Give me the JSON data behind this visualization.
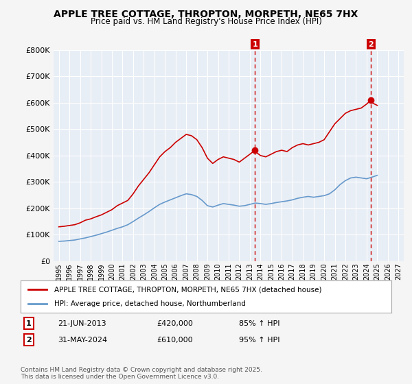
{
  "title": "APPLE TREE COTTAGE, THROPTON, MORPETH, NE65 7HX",
  "subtitle": "Price paid vs. HM Land Registry's House Price Index (HPI)",
  "ylim": [
    0,
    800000
  ],
  "yticks": [
    0,
    100000,
    200000,
    300000,
    400000,
    500000,
    600000,
    700000,
    800000
  ],
  "ytick_labels": [
    "£0",
    "£100K",
    "£200K",
    "£300K",
    "£400K",
    "£500K",
    "£600K",
    "£700K",
    "£800K"
  ],
  "xlim": [
    1994.5,
    2027.5
  ],
  "xticks": [
    1995,
    1996,
    1997,
    1998,
    1999,
    2000,
    2001,
    2002,
    2003,
    2004,
    2005,
    2006,
    2007,
    2008,
    2009,
    2010,
    2011,
    2012,
    2013,
    2014,
    2015,
    2016,
    2017,
    2018,
    2019,
    2020,
    2021,
    2022,
    2023,
    2024,
    2025,
    2026,
    2027
  ],
  "red_line_color": "#cc0000",
  "blue_line_color": "#6699cc",
  "vline_color": "#cc0000",
  "plot_bg_color": "#e8eef5",
  "grid_color": "#ffffff",
  "fig_bg_color": "#f5f5f5",
  "legend_label_red": "APPLE TREE COTTAGE, THROPTON, MORPETH, NE65 7HX (detached house)",
  "legend_label_blue": "HPI: Average price, detached house, Northumberland",
  "marker1_year": 2013.47,
  "marker1_price": 420000,
  "marker1_label": "1",
  "marker1_date": "21-JUN-2013",
  "marker1_amount": "£420,000",
  "marker1_hpi": "85% ↑ HPI",
  "marker2_year": 2024.41,
  "marker2_price": 610000,
  "marker2_label": "2",
  "marker2_date": "31-MAY-2024",
  "marker2_amount": "£610,000",
  "marker2_hpi": "95% ↑ HPI",
  "footer": "Contains HM Land Registry data © Crown copyright and database right 2025.\nThis data is licensed under the Open Government Licence v3.0.",
  "red_years": [
    1995.0,
    1995.5,
    1996.0,
    1996.5,
    1997.0,
    1997.5,
    1998.0,
    1998.5,
    1999.0,
    1999.5,
    2000.0,
    2000.5,
    2001.0,
    2001.5,
    2002.0,
    2002.5,
    2003.0,
    2003.5,
    2004.0,
    2004.5,
    2005.0,
    2005.5,
    2006.0,
    2006.5,
    2007.0,
    2007.5,
    2008.0,
    2008.5,
    2009.0,
    2009.5,
    2010.0,
    2010.5,
    2011.0,
    2011.5,
    2012.0,
    2012.5,
    2013.0,
    2013.47,
    2013.5,
    2014.0,
    2014.5,
    2015.0,
    2015.5,
    2016.0,
    2016.5,
    2017.0,
    2017.5,
    2018.0,
    2018.5,
    2019.0,
    2019.5,
    2020.0,
    2020.5,
    2021.0,
    2021.5,
    2022.0,
    2022.5,
    2023.0,
    2023.5,
    2024.0,
    2024.41,
    2024.5,
    2025.0
  ],
  "red_values": [
    130000,
    132000,
    135000,
    138000,
    145000,
    155000,
    160000,
    168000,
    175000,
    185000,
    195000,
    210000,
    220000,
    230000,
    255000,
    285000,
    310000,
    335000,
    365000,
    395000,
    415000,
    430000,
    450000,
    465000,
    480000,
    475000,
    460000,
    430000,
    390000,
    370000,
    385000,
    395000,
    390000,
    385000,
    375000,
    390000,
    405000,
    420000,
    415000,
    400000,
    395000,
    405000,
    415000,
    420000,
    415000,
    430000,
    440000,
    445000,
    440000,
    445000,
    450000,
    460000,
    490000,
    520000,
    540000,
    560000,
    570000,
    575000,
    580000,
    595000,
    610000,
    600000,
    590000
  ],
  "blue_years": [
    1995.0,
    1995.5,
    1996.0,
    1996.5,
    1997.0,
    1997.5,
    1998.0,
    1998.5,
    1999.0,
    1999.5,
    2000.0,
    2000.5,
    2001.0,
    2001.5,
    2002.0,
    2002.5,
    2003.0,
    2003.5,
    2004.0,
    2004.5,
    2005.0,
    2005.5,
    2006.0,
    2006.5,
    2007.0,
    2007.5,
    2008.0,
    2008.5,
    2009.0,
    2009.5,
    2010.0,
    2010.5,
    2011.0,
    2011.5,
    2012.0,
    2012.5,
    2013.0,
    2013.5,
    2014.0,
    2014.5,
    2015.0,
    2015.5,
    2016.0,
    2016.5,
    2017.0,
    2017.5,
    2018.0,
    2018.5,
    2019.0,
    2019.5,
    2020.0,
    2020.5,
    2021.0,
    2021.5,
    2022.0,
    2022.5,
    2023.0,
    2023.5,
    2024.0,
    2024.5,
    2025.0
  ],
  "blue_values": [
    75000,
    76000,
    78000,
    80000,
    84000,
    88000,
    93000,
    98000,
    104000,
    110000,
    117000,
    124000,
    130000,
    138000,
    150000,
    163000,
    175000,
    188000,
    202000,
    215000,
    224000,
    232000,
    240000,
    248000,
    255000,
    252000,
    245000,
    230000,
    210000,
    205000,
    212000,
    218000,
    215000,
    212000,
    208000,
    210000,
    215000,
    220000,
    218000,
    215000,
    218000,
    222000,
    225000,
    228000,
    232000,
    238000,
    242000,
    245000,
    242000,
    245000,
    248000,
    255000,
    270000,
    290000,
    305000,
    315000,
    318000,
    315000,
    312000,
    318000,
    325000
  ]
}
